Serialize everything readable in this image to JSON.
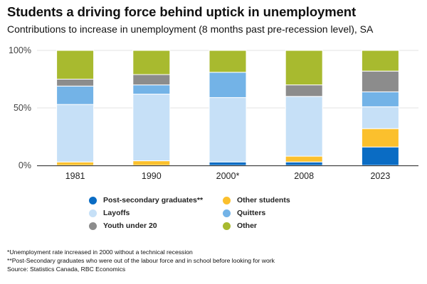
{
  "header": {
    "title": "Students a driving force behind uptick in unemployment",
    "subtitle": "Contributions to increase in unemployment (8 months past pre-recession level), SA"
  },
  "chart_data": {
    "type": "bar",
    "stacked": true,
    "normalized": true,
    "categories": [
      "1981",
      "1990",
      "2000*",
      "2008",
      "2023"
    ],
    "ylim": [
      0,
      100
    ],
    "y_ticks": [
      "0%",
      "50%",
      "100%"
    ],
    "grid": true,
    "legend_position": "bottom",
    "series": [
      {
        "name": "Post-secondary graduates**",
        "color": "#0a6cc4",
        "values": [
          0,
          0,
          3,
          3,
          16
        ]
      },
      {
        "name": "Other students",
        "color": "#fbc02d",
        "values": [
          3,
          4,
          0,
          5,
          16
        ]
      },
      {
        "name": "Layoffs",
        "color": "#c6e0f7",
        "values": [
          50,
          58,
          56,
          52,
          19
        ]
      },
      {
        "name": "Quitters",
        "color": "#73b3e7",
        "values": [
          16,
          8,
          22,
          0,
          13
        ]
      },
      {
        "name": "Youth under 20",
        "color": "#8c8c8c",
        "values": [
          6,
          9,
          0,
          10,
          18
        ]
      },
      {
        "name": "Other",
        "color": "#a8ba2f",
        "values": [
          25,
          21,
          19,
          30,
          18
        ]
      }
    ]
  },
  "footnotes": [
    "*Unemployment rate increased in 2000 without a technical recession",
    "**Post-Secondary graduates who were out of the labour force and in school before looking for work",
    "Source: Statistics Canada, RBC Economics"
  ]
}
